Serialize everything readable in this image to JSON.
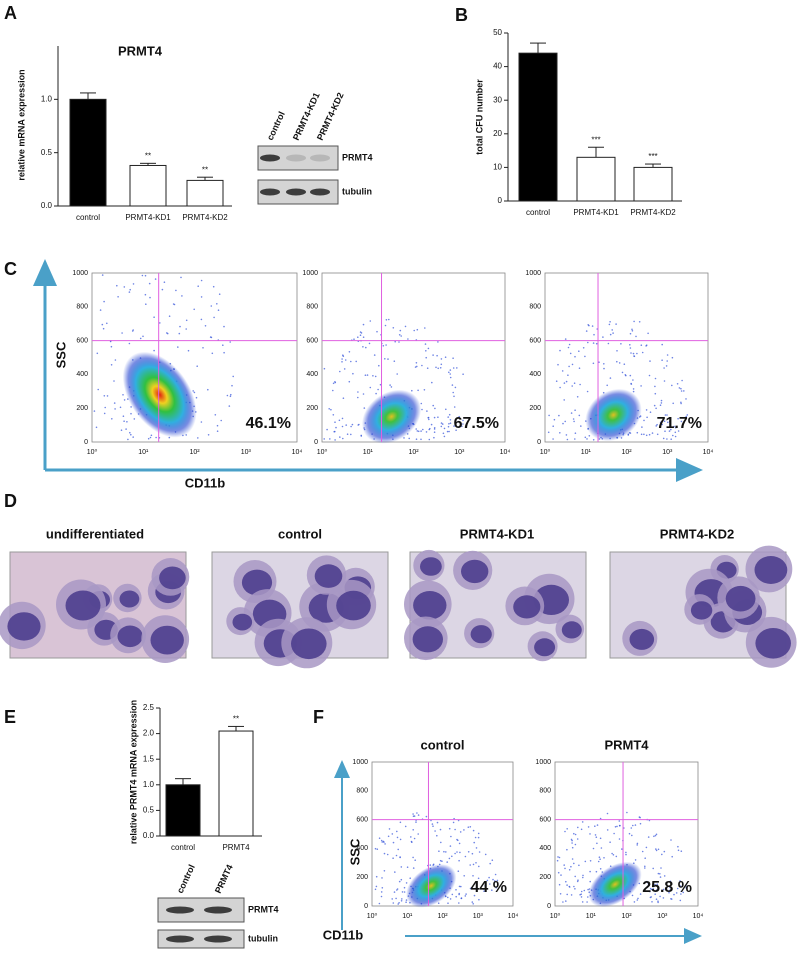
{
  "panel_letters": [
    "A",
    "B",
    "C",
    "D",
    "E",
    "F"
  ],
  "chart_data": [
    {
      "type": "bar",
      "title": "PRMT4",
      "y_label": "relative mRNA expression",
      "categories": [
        "control",
        "PRMT4-KD1",
        "PRMT4-KD2"
      ],
      "values": [
        1.0,
        0.38,
        0.24
      ],
      "errors": [
        0.06,
        0.02,
        0.03
      ],
      "colors": [
        "#000000",
        "#ffffff",
        "#ffffff"
      ],
      "significance": [
        null,
        "**",
        "**"
      ],
      "ylim": [
        0,
        1.5
      ],
      "yticks": [
        {
          "value": 0,
          "label": "0.0"
        },
        {
          "value": 0.5,
          "label": "0.5"
        },
        {
          "value": 1,
          "label": "1.0"
        }
      ]
    },
    {
      "type": "bar",
      "y_label": "total CFU number",
      "categories": [
        "control",
        "PRMT4-KD1",
        "PRMT4-KD2"
      ],
      "values": [
        44,
        13,
        10
      ],
      "errors": [
        3,
        3,
        1
      ],
      "colors": [
        "#000000",
        "#ffffff",
        "#ffffff"
      ],
      "significance": [
        null,
        "***",
        "***"
      ],
      "ylim": [
        0,
        50
      ],
      "yticks": [
        0,
        10,
        20,
        30,
        40,
        50
      ]
    },
    {
      "type": "bar",
      "y_label": "relative PRMT4 mRNA expression",
      "categories": [
        "control",
        "PRMT4"
      ],
      "values": [
        1.0,
        2.05
      ],
      "errors": [
        0.12,
        0.09
      ],
      "colors": [
        "#000000",
        "#ffffff"
      ],
      "significance": [
        null,
        "**"
      ],
      "ylim": [
        0,
        2.5
      ],
      "yticks": [
        {
          "value": 0,
          "label": "0.0"
        },
        {
          "value": 0.5,
          "label": "0.5"
        },
        {
          "value": 1,
          "label": "1.0"
        },
        {
          "value": 1.5,
          "label": "1.5"
        },
        {
          "value": 2,
          "label": "2.0"
        },
        {
          "value": 2.5,
          "label": "2.5"
        }
      ]
    },
    {
      "type": "flow",
      "values": [
        46.1
      ],
      "value_labels": [
        "46.1%"
      ],
      "xscale": "log",
      "xlim": [
        1,
        10000
      ],
      "ylim": [
        0,
        1000
      ],
      "xticks": [
        {
          "value": 1,
          "label": "10⁰"
        },
        {
          "value": 10,
          "label": "10¹"
        },
        {
          "value": 100,
          "label": "10²"
        },
        {
          "value": 1000,
          "label": "10³"
        },
        {
          "value": 10000,
          "label": "10⁴"
        }
      ],
      "yticks": [
        0,
        200,
        400,
        600,
        800,
        1000
      ],
      "gates": {
        "x": 20,
        "y": 600
      },
      "gate_color": "#e060e0"
    },
    {
      "type": "flow",
      "values": [
        67.5
      ],
      "value_labels": [
        "67.5%"
      ],
      "xscale": "log",
      "xlim": [
        1,
        10000
      ],
      "ylim": [
        0,
        1000
      ],
      "xticks": [
        {
          "value": 1,
          "label": "10⁰"
        },
        {
          "value": 10,
          "label": "10¹"
        },
        {
          "value": 100,
          "label": "10²"
        },
        {
          "value": 1000,
          "label": "10³"
        },
        {
          "value": 10000,
          "label": "10⁴"
        }
      ],
      "yticks": [
        0,
        200,
        400,
        600,
        800,
        1000
      ],
      "gates": {
        "x": 20,
        "y": 600
      },
      "gate_color": "#e060e0"
    },
    {
      "type": "flow",
      "values": [
        71.7
      ],
      "value_labels": [
        "71.7%"
      ],
      "xscale": "log",
      "xlim": [
        1,
        10000
      ],
      "ylim": [
        0,
        1000
      ],
      "xticks": [
        {
          "value": 1,
          "label": "10⁰"
        },
        {
          "value": 10,
          "label": "10¹"
        },
        {
          "value": 100,
          "label": "10²"
        },
        {
          "value": 1000,
          "label": "10³"
        },
        {
          "value": 10000,
          "label": "10⁴"
        }
      ],
      "yticks": [
        0,
        200,
        400,
        600,
        800,
        1000
      ],
      "gates": {
        "x": 20,
        "y": 600
      },
      "gate_color": "#e060e0"
    },
    {
      "type": "flow",
      "title": "control",
      "values": [
        44
      ],
      "value_labels": [
        "44 %"
      ],
      "xscale": "log",
      "xlim": [
        1,
        10000
      ],
      "ylim": [
        0,
        1000
      ],
      "xticks": [
        {
          "value": 1,
          "label": "10⁰"
        },
        {
          "value": 10,
          "label": "10¹"
        },
        {
          "value": 100,
          "label": "10²"
        },
        {
          "value": 1000,
          "label": "10³"
        },
        {
          "value": 10000,
          "label": "10⁴"
        }
      ],
      "yticks": [
        0,
        200,
        400,
        600,
        800,
        1000
      ],
      "gates": {
        "x": 40,
        "y": 600
      },
      "gate_color": "#e060e0"
    },
    {
      "type": "flow",
      "title": "PRMT4",
      "values": [
        25.8
      ],
      "value_labels": [
        "25.8 %"
      ],
      "xscale": "log",
      "xlim": [
        1,
        10000
      ],
      "ylim": [
        0,
        1000
      ],
      "xticks": [
        {
          "value": 1,
          "label": "10⁰"
        },
        {
          "value": 10,
          "label": "10¹"
        },
        {
          "value": 100,
          "label": "10²"
        },
        {
          "value": 1000,
          "label": "10³"
        },
        {
          "value": 10000,
          "label": "10⁴"
        }
      ],
      "yticks": [
        0,
        200,
        400,
        600,
        800,
        1000
      ],
      "gates": {
        "x": 80,
        "y": 600
      },
      "gate_color": "#e060e0"
    }
  ],
  "flow_axis_labels": {
    "c": {
      "y": "SSC",
      "x": "CD11b"
    },
    "f": {
      "y": "SSC",
      "x": "CD11b"
    }
  },
  "blots": [
    {
      "lanes": [
        "control",
        "PRMT4-KD1",
        "PRMT4-KD2"
      ],
      "proteins": [
        "PRMT4",
        "tubulin"
      ]
    },
    {
      "lanes": [
        "control",
        "PRMT4"
      ],
      "proteins": [
        "PRMT4",
        "tubulin"
      ]
    }
  ],
  "micrographs": [
    "undifferentiated",
    "control",
    "PRMT4-KD1",
    "PRMT4-KD2"
  ]
}
